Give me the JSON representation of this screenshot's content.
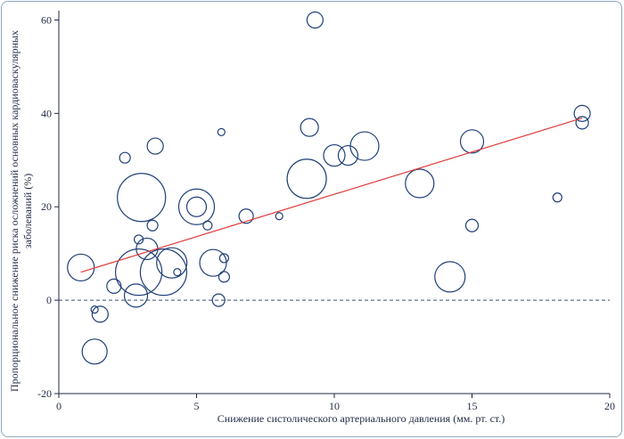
{
  "chart_data": {
    "type": "scatter",
    "title": "",
    "xlabel": "Снижение систолического артериального давления (мм. рт. ст.)",
    "ylabel_line1": "Пропорциональное снижение риска осложнений основных кардиоваскулярных",
    "ylabel_line2": "заболеваний (%)",
    "xlim": [
      0,
      20
    ],
    "ylim": [
      -20,
      62
    ],
    "x_ticks": [
      0,
      5,
      10,
      15,
      20
    ],
    "y_ticks": [
      -20,
      0,
      20,
      40,
      60
    ],
    "x_tick_labels": [
      "0",
      "5",
      "10",
      "15",
      "20"
    ],
    "y_tick_labels": [
      "-20",
      "0",
      "20",
      "40",
      "60"
    ],
    "grid": false,
    "reference_line": {
      "y": 0,
      "style": "dashed"
    },
    "regression_line": {
      "x": [
        0.8,
        19.0
      ],
      "y": [
        6,
        39
      ],
      "color": "#e03b3b"
    },
    "colors": {
      "bubble": "#1f3f78",
      "axis": "#1f2a44",
      "frame": "#8ea7c4"
    },
    "points": [
      {
        "x": 9.3,
        "y": 60,
        "size": 9
      },
      {
        "x": 19.0,
        "y": 40,
        "size": 9
      },
      {
        "x": 19.0,
        "y": 38,
        "size": 7
      },
      {
        "x": 9.1,
        "y": 37,
        "size": 10
      },
      {
        "x": 5.9,
        "y": 36,
        "size": 4
      },
      {
        "x": 3.5,
        "y": 33,
        "size": 9
      },
      {
        "x": 2.4,
        "y": 30.5,
        "size": 6
      },
      {
        "x": 11.1,
        "y": 33,
        "size": 16
      },
      {
        "x": 10.5,
        "y": 31,
        "size": 11
      },
      {
        "x": 10.0,
        "y": 31,
        "size": 12
      },
      {
        "x": 15.0,
        "y": 34,
        "size": 13
      },
      {
        "x": 9.0,
        "y": 26,
        "size": 22
      },
      {
        "x": 13.1,
        "y": 25,
        "size": 16
      },
      {
        "x": 3.0,
        "y": 22,
        "size": 27
      },
      {
        "x": 18.1,
        "y": 22,
        "size": 5
      },
      {
        "x": 5.0,
        "y": 20,
        "size": 20
      },
      {
        "x": 5.0,
        "y": 20,
        "size": 11
      },
      {
        "x": 6.8,
        "y": 18,
        "size": 8
      },
      {
        "x": 8.0,
        "y": 18,
        "size": 4
      },
      {
        "x": 5.4,
        "y": 16,
        "size": 5
      },
      {
        "x": 3.4,
        "y": 16,
        "size": 6
      },
      {
        "x": 15.0,
        "y": 16,
        "size": 7
      },
      {
        "x": 2.9,
        "y": 13,
        "size": 5
      },
      {
        "x": 3.2,
        "y": 11,
        "size": 12
      },
      {
        "x": 4.1,
        "y": 8,
        "size": 17
      },
      {
        "x": 5.6,
        "y": 8,
        "size": 15
      },
      {
        "x": 6.0,
        "y": 9,
        "size": 5
      },
      {
        "x": 0.8,
        "y": 7,
        "size": 15
      },
      {
        "x": 4.3,
        "y": 6,
        "size": 4
      },
      {
        "x": 2.9,
        "y": 6,
        "size": 26
      },
      {
        "x": 3.8,
        "y": 6,
        "size": 26
      },
      {
        "x": 14.2,
        "y": 5,
        "size": 17
      },
      {
        "x": 6.0,
        "y": 5,
        "size": 6
      },
      {
        "x": 2.0,
        "y": 3,
        "size": 8
      },
      {
        "x": 2.8,
        "y": 1,
        "size": 13
      },
      {
        "x": 5.8,
        "y": 0,
        "size": 7
      },
      {
        "x": 1.3,
        "y": -2,
        "size": 4
      },
      {
        "x": 1.5,
        "y": -3,
        "size": 9
      },
      {
        "x": 1.3,
        "y": -11,
        "size": 14
      }
    ]
  }
}
